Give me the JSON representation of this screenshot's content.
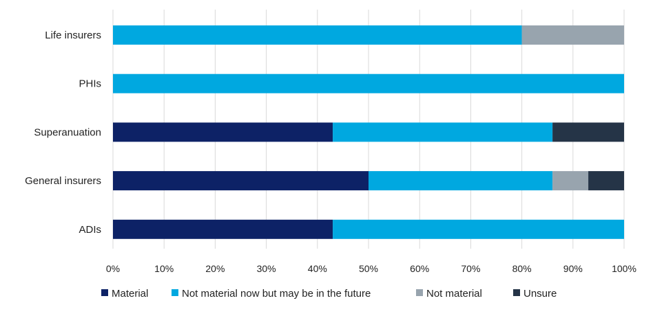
{
  "chart_data": {
    "type": "bar",
    "orientation": "horizontal",
    "stacked": true,
    "categories": [
      "Life insurers",
      "PHIs",
      "Superanuation",
      "General insurers",
      "ADIs"
    ],
    "series": [
      {
        "name": "Material",
        "color": "#0d2266",
        "values": [
          0,
          0,
          43,
          50,
          43
        ]
      },
      {
        "name": "Not material now but may be in the future",
        "color": "#00a8e0",
        "values": [
          80,
          100,
          43,
          36,
          57
        ]
      },
      {
        "name": "Not material",
        "color": "#98a4ae",
        "values": [
          20,
          0,
          0,
          7,
          0
        ]
      },
      {
        "name": "Unsure",
        "color": "#253447",
        "values": [
          0,
          0,
          14,
          7,
          0
        ]
      }
    ],
    "x_ticks": [
      "0%",
      "10%",
      "20%",
      "30%",
      "40%",
      "50%",
      "60%",
      "70%",
      "80%",
      "90%",
      "100%"
    ],
    "xlim": [
      0,
      100
    ],
    "grid": "vertical",
    "legend_position": "bottom",
    "title": "",
    "xlabel": "",
    "ylabel": ""
  }
}
